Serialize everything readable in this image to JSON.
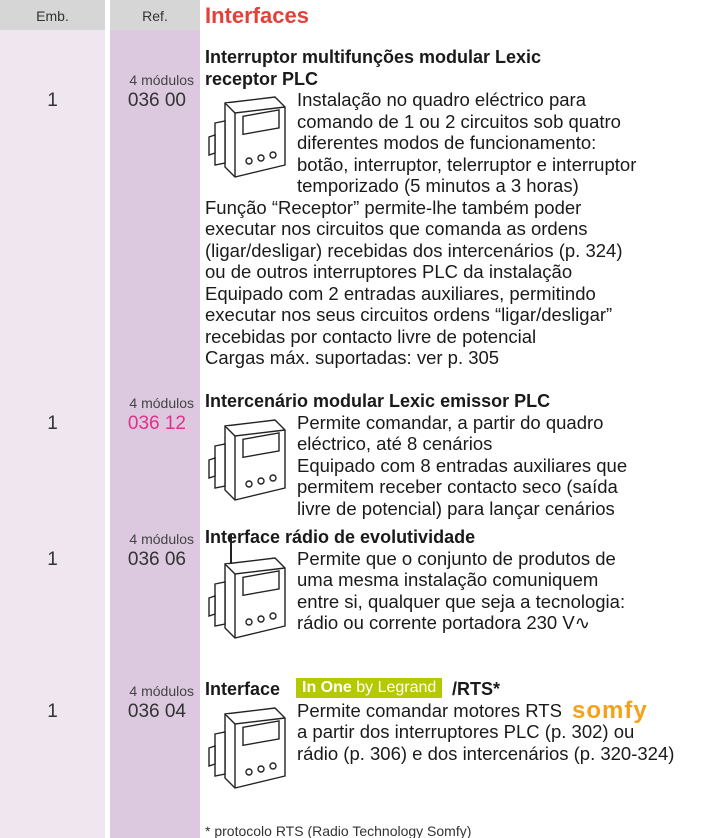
{
  "header": {
    "emb": "Emb.",
    "ref": "Ref.",
    "title": "Interfaces"
  },
  "products": [
    {
      "packaging": "1",
      "modules": "4 módulos",
      "ref": "036 00",
      "name": [
        "Interruptor multifunções modular Lexic",
        "receptor PLC"
      ],
      "beside_image": [
        "Instalação no quadro eléctrico para",
        "comando de 1 ou 2 circuitos sob quatro",
        "diferentes modos de funcionamento:",
        "botão, interruptor, telerruptor e interruptor",
        "temporizado (5 minutos a 3 horas)"
      ],
      "below_image": [
        "Função “Receptor” permite-lhe também poder",
        "executar nos circuitos que comanda as ordens",
        "(ligar/desligar) recebidas dos intercenários (p. 324)",
        "ou de outros interruptores PLC da instalação",
        "Equipado com 2 entradas auxiliares, permitindo",
        "executar nos seus circuitos ordens “ligar/desligar”",
        "recebidas por contacto livre de potencial",
        "Cargas máx. suportadas: ver p. 305"
      ]
    },
    {
      "packaging": "1",
      "modules": "4 módulos",
      "ref": "036 12",
      "name": [
        "Intercenário modular Lexic emissor PLC"
      ],
      "beside_image": [
        "Permite comandar, a partir do quadro",
        "eléctrico, até 8 cenários",
        "Equipado com 8 entradas auxiliares que",
        "permitem receber contacto seco (saída",
        "livre de potencial) para lançar cenários"
      ],
      "below_image": []
    },
    {
      "packaging": "1",
      "modules": "4 módulos",
      "ref": "036 06",
      "name": [
        "Interface rádio de evolutividade"
      ],
      "beside_image": [
        "Permite que o conjunto de produtos de",
        "uma mesma instalação comuniquem",
        "entre si, qualquer que seja a tecnologia:",
        "rádio ou corrente portadora 230 V∿"
      ],
      "below_image": []
    },
    {
      "packaging": "1",
      "modules": "4 módulos",
      "ref": "036 04",
      "name": [
        "Interface"
      ],
      "brand": {
        "bold": "In One",
        "light": "by Legrand"
      },
      "name_suffix": "/RTS*",
      "logo": "somfy",
      "beside_image": [
        "Permite comandar motores RTS",
        "a partir dos interruptores PLC (p. 302) ou",
        "rádio (p. 306) e dos intercenários (p. 320-324)"
      ],
      "below_image": []
    }
  ],
  "footnote": "* protocolo RTS (Radio Technology Somfy)"
}
